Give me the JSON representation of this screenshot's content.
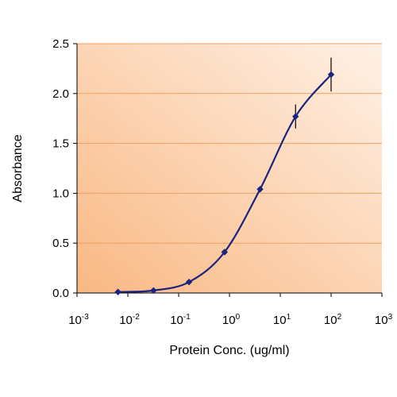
{
  "chart_data": {
    "type": "line",
    "title": "",
    "xlabel": "Protein Conc. (ug/ml)",
    "ylabel": "Absorbance",
    "x_scale": "log",
    "xlim": [
      0.001,
      1000
    ],
    "ylim": [
      0,
      2.5
    ],
    "grid": "horizontal",
    "x_ticks": [
      {
        "base": "10",
        "exp": "-3",
        "value": 0.001
      },
      {
        "base": "10",
        "exp": "-2",
        "value": 0.01
      },
      {
        "base": "10",
        "exp": "-1",
        "value": 0.1
      },
      {
        "base": "10",
        "exp": "0",
        "value": 1
      },
      {
        "base": "10",
        "exp": "1",
        "value": 10
      },
      {
        "base": "10",
        "exp": "2",
        "value": 100
      },
      {
        "base": "10",
        "exp": "3",
        "value": 1000
      }
    ],
    "y_ticks": [
      {
        "label": "0.0",
        "value": 0
      },
      {
        "label": "0.5",
        "value": 0.5
      },
      {
        "label": "1.0",
        "value": 1.0
      },
      {
        "label": "1.5",
        "value": 1.5
      },
      {
        "label": "2.0",
        "value": 2.0
      },
      {
        "label": "2.5",
        "value": 2.5
      }
    ],
    "series": [
      {
        "points": [
          {
            "x": 0.0064,
            "y": 0.01,
            "err": 0
          },
          {
            "x": 0.032,
            "y": 0.025,
            "err": 0
          },
          {
            "x": 0.16,
            "y": 0.11,
            "err": 0
          },
          {
            "x": 0.8,
            "y": 0.41,
            "err": 0
          },
          {
            "x": 4,
            "y": 1.04,
            "err": 0
          },
          {
            "x": 20,
            "y": 1.77,
            "err": 0.12
          },
          {
            "x": 100,
            "y": 2.19,
            "err": 0.17
          }
        ]
      }
    ],
    "colors": {
      "series": "#1a237e",
      "plot_bg_dark": "#f9b883",
      "plot_bg_light": "#fff1e6",
      "gridline": "#f0a060",
      "axis": "#000000"
    }
  }
}
